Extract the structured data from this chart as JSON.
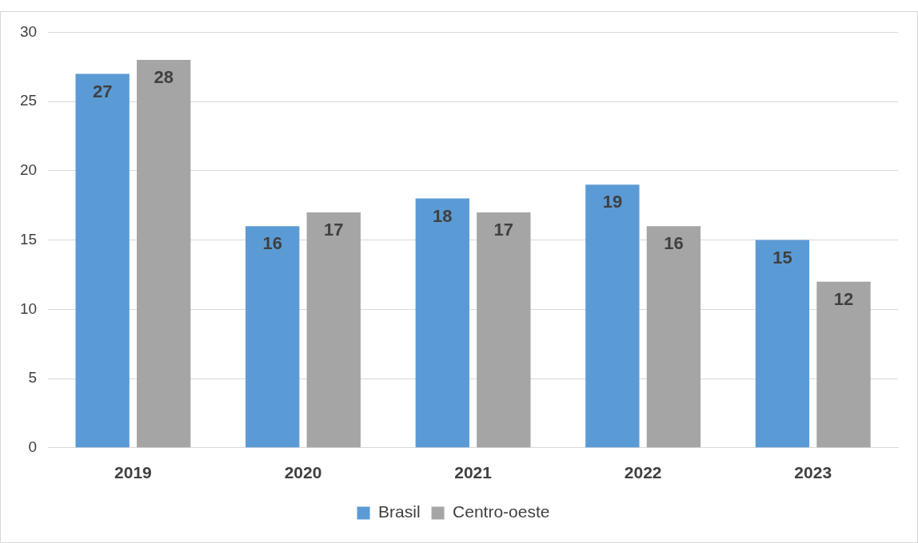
{
  "chart_data": {
    "type": "bar",
    "categories": [
      "2019",
      "2020",
      "2021",
      "2022",
      "2023"
    ],
    "series": [
      {
        "name": "Brasil",
        "color": "#5b9bd5",
        "values": [
          27,
          16,
          18,
          19,
          15
        ]
      },
      {
        "name": "Centro-oeste",
        "color": "#a5a5a5",
        "values": [
          28,
          17,
          17,
          16,
          12
        ]
      }
    ],
    "ylim": [
      0,
      30
    ],
    "yticks": [
      0,
      5,
      10,
      15,
      20,
      25,
      30
    ],
    "grid": "y",
    "legend": "bottom",
    "data_labels": true
  }
}
